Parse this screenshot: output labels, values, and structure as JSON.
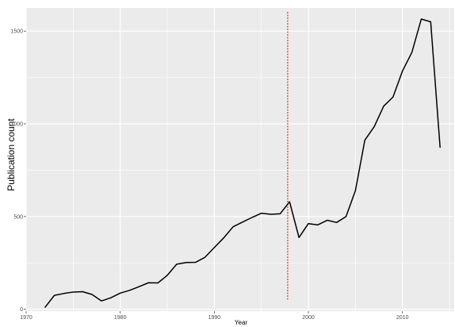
{
  "chart_data": {
    "type": "line",
    "xlabel": "Year",
    "ylabel": "Publication count",
    "xlim": [
      1970,
      2015.5
    ],
    "ylim": [
      -10,
      1625
    ],
    "x_ticks": [
      1970,
      1980,
      1990,
      2000,
      2010
    ],
    "y_ticks": [
      0,
      500,
      1000,
      1500
    ],
    "grid": true,
    "background": "#EBEBEB",
    "grid_color": "#FFFFFF",
    "series": [
      {
        "color": "#000000",
        "x": [
          1972,
          1973,
          1974,
          1975,
          1976,
          1977,
          1978,
          1979,
          1980,
          1981,
          1982,
          1983,
          1984,
          1985,
          1986,
          1987,
          1988,
          1989,
          1990,
          1991,
          1992,
          1993,
          1994,
          1995,
          1996,
          1997,
          1998,
          1999,
          2000,
          2001,
          2002,
          2003,
          2004,
          2005,
          2006,
          2007,
          2008,
          2009,
          2010,
          2011,
          2012,
          2013,
          2014
        ],
        "values": [
          10,
          75,
          85,
          93,
          95,
          80,
          45,
          62,
          87,
          102,
          122,
          143,
          142,
          183,
          243,
          252,
          253,
          280,
          333,
          385,
          445,
          470,
          495,
          518,
          512,
          515,
          580,
          387,
          462,
          455,
          480,
          468,
          500,
          640,
          912,
          985,
          1095,
          1145,
          1285,
          1385,
          1565,
          1550,
          872
        ]
      }
    ],
    "annotations": [
      {
        "type": "vline",
        "x": 1997.8,
        "color": "#FF0000",
        "style": "dashed"
      }
    ]
  }
}
